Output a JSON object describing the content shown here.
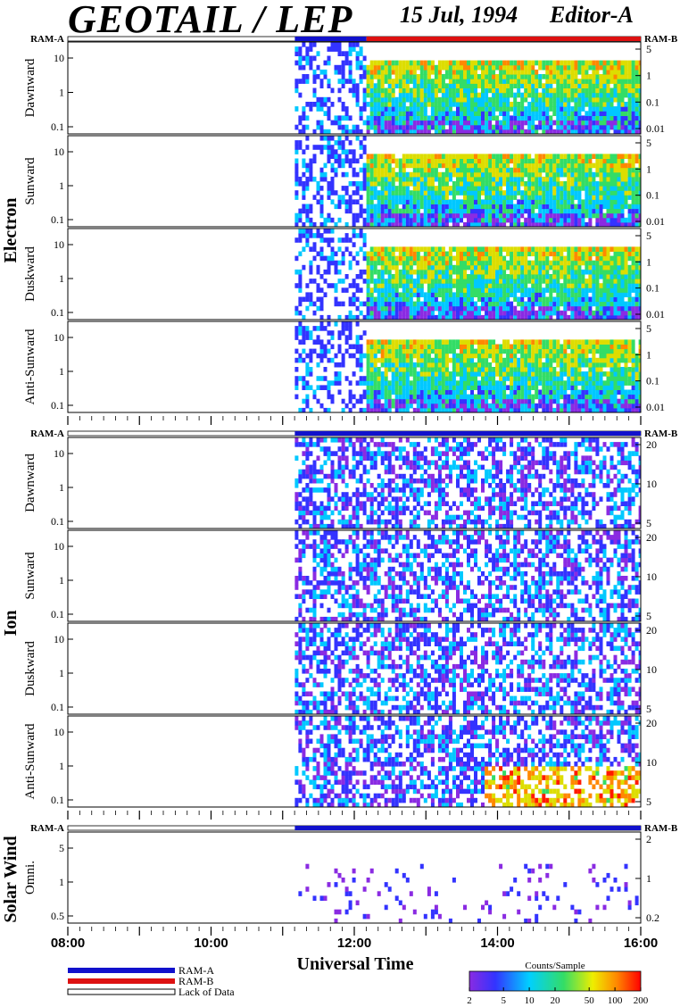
{
  "header": {
    "instrument": "GEOTAIL / LEP",
    "date": "15 Jul, 1994",
    "editor": "Editor-A"
  },
  "groups": {
    "electron": "Electron",
    "ion": "Ion",
    "solar_wind": "Solar Wind"
  },
  "ram": {
    "a_label": "RAM-A",
    "b_label": "RAM-B",
    "colors": {
      "ram_a": "#1111cc",
      "ram_b": "#dd1111"
    }
  },
  "chart_data": {
    "type": "heatmap",
    "x": {
      "label": "Universal Time",
      "tick_labels": [
        "08:00",
        "10:00",
        "12:00",
        "14:00",
        "16:00"
      ],
      "range_hours": [
        8,
        16
      ]
    },
    "colorbar": {
      "label": "Counts/Sample",
      "tick_labels": [
        "2",
        "5",
        "10",
        "20",
        "50",
        "100",
        "200"
      ]
    },
    "panels": [
      {
        "group": "Electron",
        "name": "Dawnward",
        "left_ticks": [
          "10",
          "1",
          "0.1"
        ],
        "right_ticks": [
          "5",
          "1",
          "0.1",
          "0.01"
        ]
      },
      {
        "group": "Electron",
        "name": "Sunward",
        "left_ticks": [
          "10",
          "1",
          "0.1"
        ],
        "right_ticks": [
          "5",
          "1",
          "0.1",
          "0.01"
        ]
      },
      {
        "group": "Electron",
        "name": "Duskward",
        "left_ticks": [
          "10",
          "1",
          "0.1"
        ],
        "right_ticks": [
          "5",
          "1",
          "0.1",
          "0.01"
        ]
      },
      {
        "group": "Electron",
        "name": "Anti-Sunward",
        "left_ticks": [
          "10",
          "1",
          "0.1"
        ],
        "right_ticks": [
          "5",
          "1",
          "0.1",
          "0.01"
        ]
      },
      {
        "group": "Ion",
        "name": "Dawnward",
        "left_ticks": [
          "10",
          "1",
          "0.1"
        ],
        "right_ticks": [
          "20",
          "10",
          "5"
        ]
      },
      {
        "group": "Ion",
        "name": "Sunward",
        "left_ticks": [
          "10",
          "1",
          "0.1"
        ],
        "right_ticks": [
          "20",
          "10",
          "5"
        ]
      },
      {
        "group": "Ion",
        "name": "Duskward",
        "left_ticks": [
          "10",
          "1",
          "0.1"
        ],
        "right_ticks": [
          "20",
          "10",
          "5"
        ]
      },
      {
        "group": "Ion",
        "name": "Anti-Sunward",
        "left_ticks": [
          "10",
          "1",
          "0.1"
        ],
        "right_ticks": [
          "20",
          "10",
          "5"
        ]
      },
      {
        "group": "Solar Wind",
        "name": "Omni.",
        "left_ticks": [
          "5",
          "1",
          "0.5"
        ],
        "right_ticks": [
          "2",
          "1",
          "0.2"
        ]
      }
    ],
    "ram_bars": [
      {
        "label_left": "RAM-A",
        "label_right": "RAM-B",
        "segments": [
          {
            "from": 11.17,
            "to": 12.17,
            "mode": "A"
          },
          {
            "from": 12.17,
            "to": 16.0,
            "mode": "B"
          }
        ]
      },
      {
        "label_left": "RAM-A",
        "label_right": "RAM-B",
        "segments": [
          {
            "from": 11.17,
            "to": 16.0,
            "mode": "A"
          }
        ]
      },
      {
        "label_left": "RAM-A",
        "label_right": "RAM-B",
        "segments": [
          {
            "from": 11.17,
            "to": 16.0,
            "mode": "A"
          }
        ]
      }
    ]
  },
  "legend": {
    "items": [
      {
        "label": "RAM-A",
        "color": "#1111cc"
      },
      {
        "label": "RAM-B",
        "color": "#dd1111"
      },
      {
        "label": "Lack of Data",
        "color": "#ffffff"
      }
    ]
  }
}
